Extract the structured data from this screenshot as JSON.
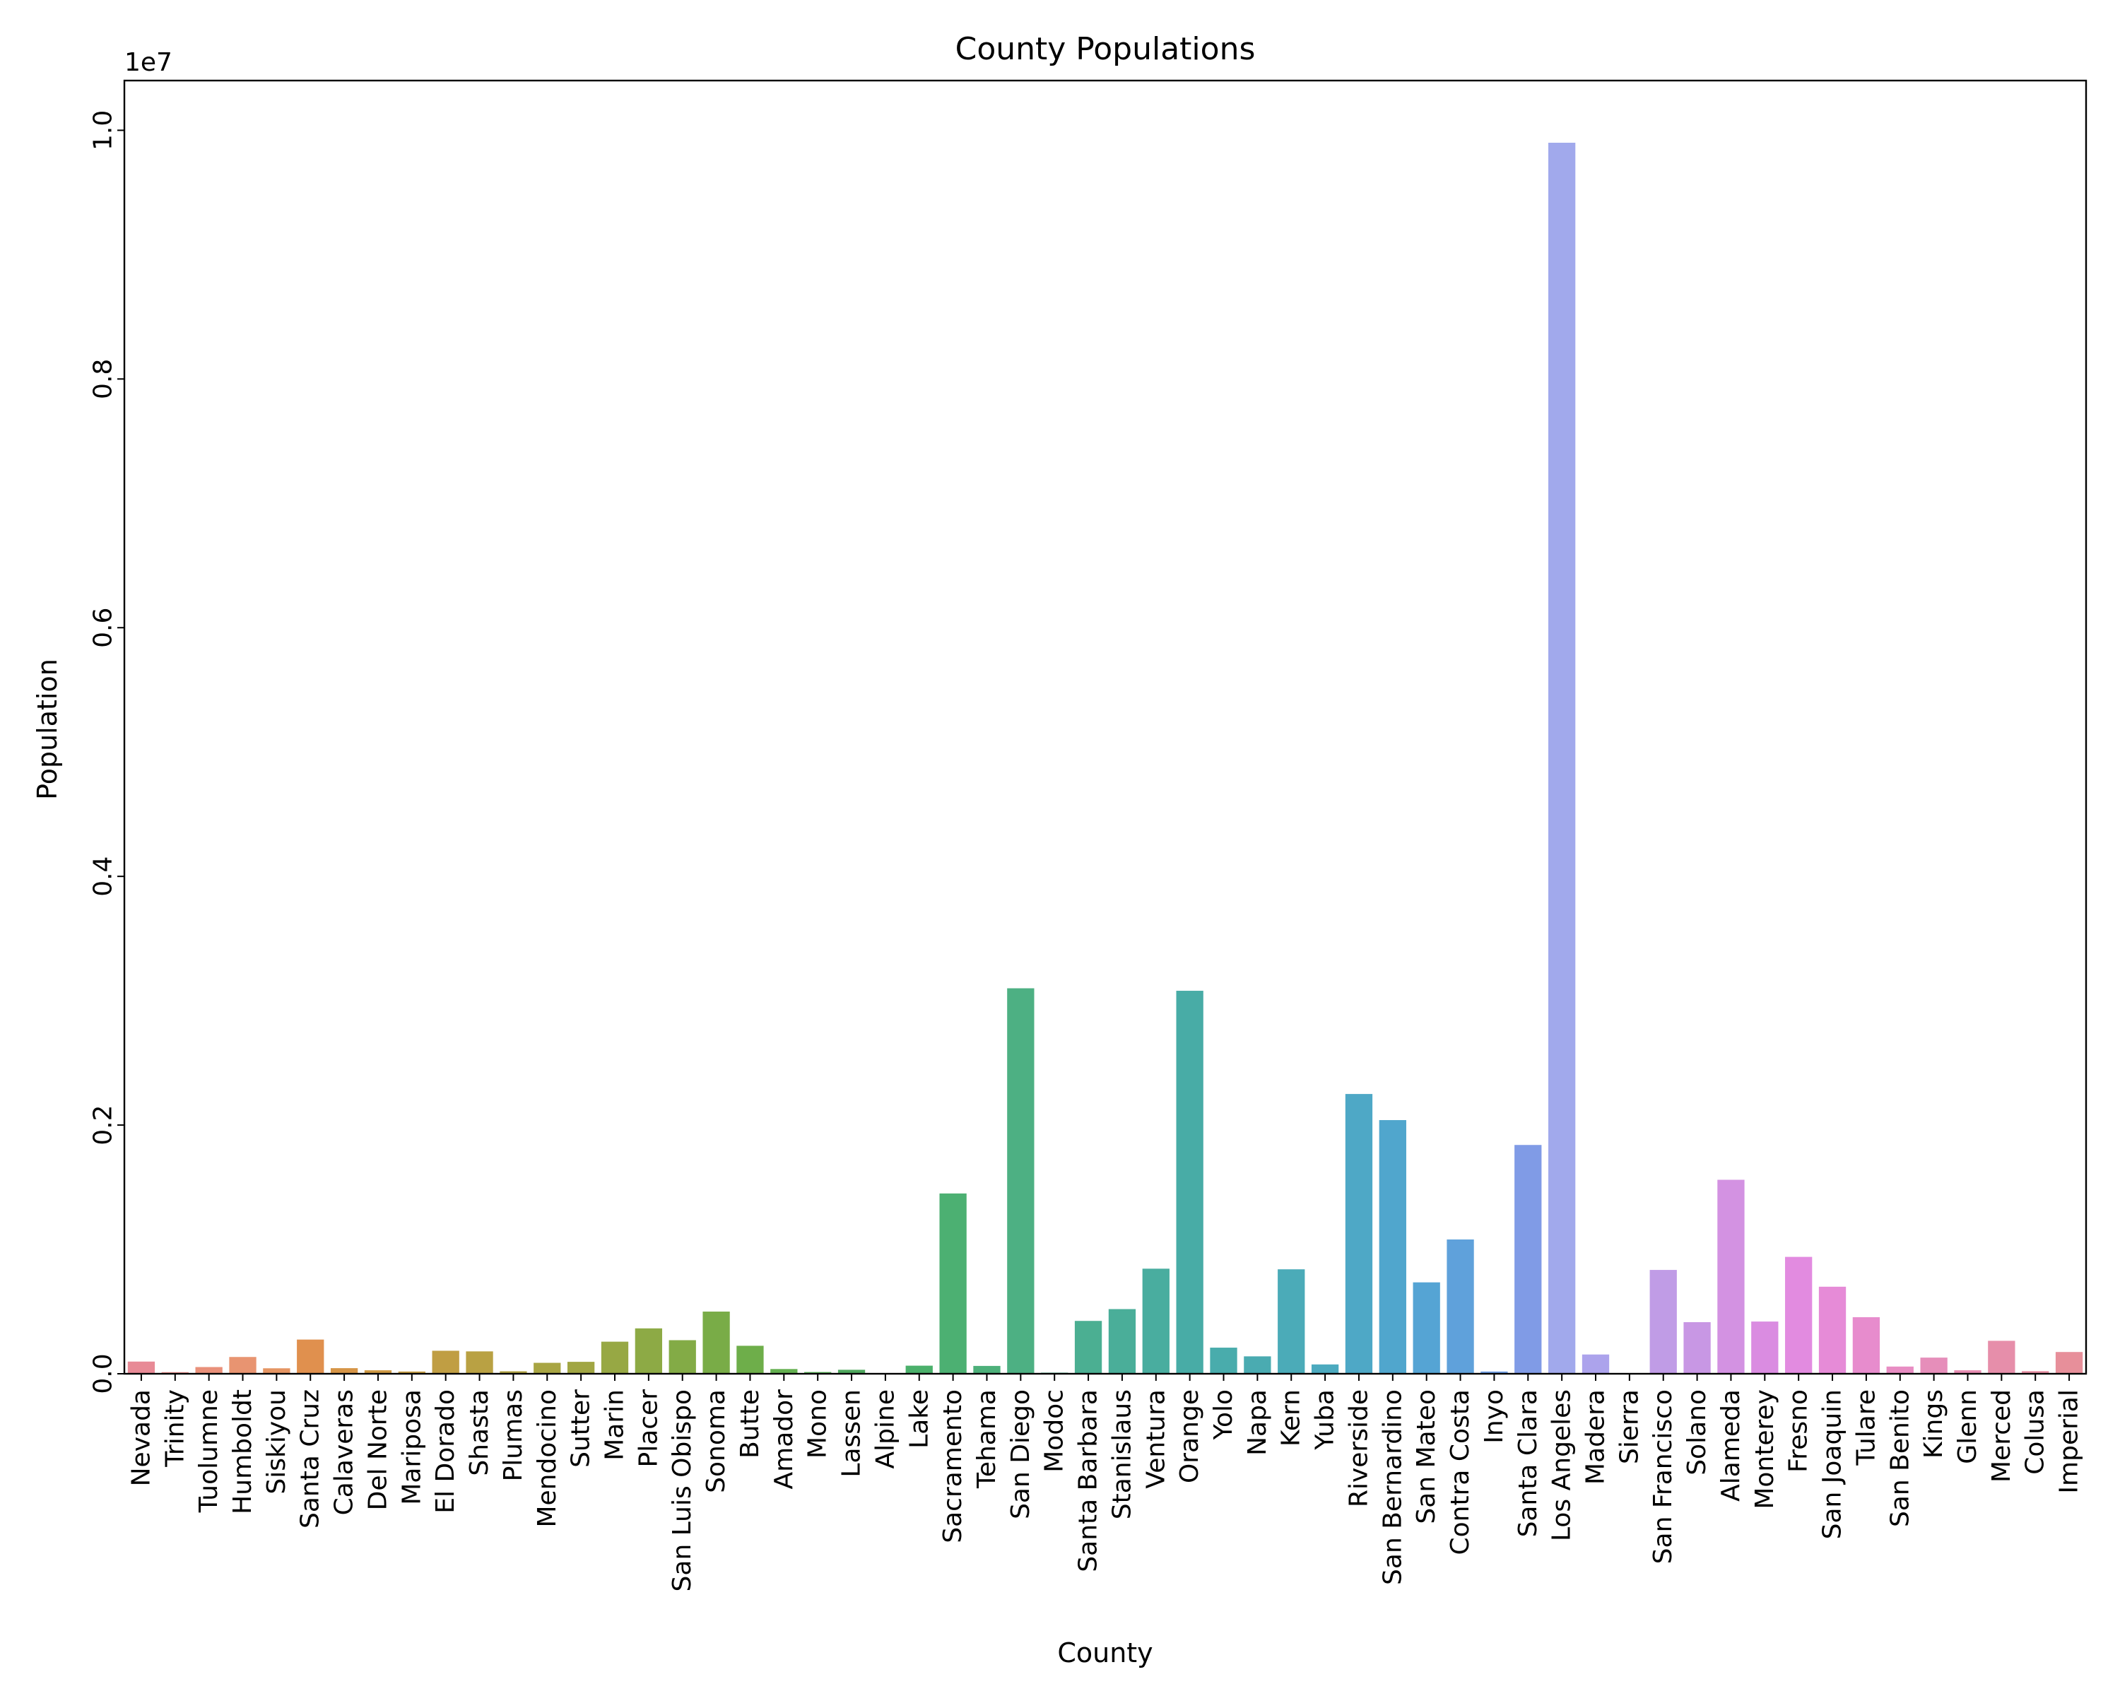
{
  "chart_data": {
    "type": "bar",
    "title": "County Populations",
    "xlabel": "County",
    "ylabel": "Population",
    "y_offset_label": "1e7",
    "ylim": [
      0,
      10400000
    ],
    "y_ticks": [
      0,
      2000000,
      4000000,
      6000000,
      8000000,
      10000000
    ],
    "y_tick_labels": [
      "0.0",
      "0.2",
      "0.4",
      "0.6",
      "0.8",
      "1.0"
    ],
    "grid": false,
    "categories": [
      "Nevada",
      "Trinity",
      "Tuolumne",
      "Humboldt",
      "Siskiyou",
      "Santa Cruz",
      "Calaveras",
      "Del Norte",
      "Mariposa",
      "El Dorado",
      "Shasta",
      "Plumas",
      "Mendocino",
      "Sutter",
      "Marin",
      "Placer",
      "San Luis Obispo",
      "Sonoma",
      "Butte",
      "Amador",
      "Mono",
      "Lassen",
      "Alpine",
      "Lake",
      "Sacramento",
      "Tehama",
      "San Diego",
      "Modoc",
      "Santa Barbara",
      "Stanislaus",
      "Ventura",
      "Orange",
      "Yolo",
      "Napa",
      "Kern",
      "Yuba",
      "Riverside",
      "San Bernardino",
      "San Mateo",
      "Contra Costa",
      "Inyo",
      "Santa Clara",
      "Los Angeles",
      "Madera",
      "Sierra",
      "San Francisco",
      "Solano",
      "Alameda",
      "Monterey",
      "Fresno",
      "San Joaquin",
      "Tulare",
      "San Benito",
      "Kings",
      "Glenn",
      "Merced",
      "Colusa",
      "Imperial"
    ],
    "values": [
      98000,
      13000,
      54000,
      135000,
      44000,
      275000,
      45000,
      28000,
      18000,
      185000,
      180000,
      20000,
      88000,
      96000,
      258000,
      365000,
      270000,
      500000,
      225000,
      38000,
      14000,
      32000,
      1100,
      65000,
      1450000,
      63000,
      3100000,
      9000,
      425000,
      520000,
      845000,
      3080000,
      210000,
      140000,
      840000,
      75000,
      2250000,
      2040000,
      735000,
      1080000,
      18000,
      1840000,
      9900000,
      155000,
      3200,
      835000,
      415000,
      1560000,
      420000,
      940000,
      700000,
      455000,
      58000,
      130000,
      28000,
      265000,
      21000,
      175000
    ],
    "colors": [
      "#e88a96",
      "#ea8c8a",
      "#e9907a",
      "#e89471",
      "#e59563",
      "#e0904e",
      "#d69547",
      "#ce9944",
      "#c69d43",
      "#c09e43",
      "#b9a143",
      "#b0a243",
      "#a8a543",
      "#a1a643",
      "#97a844",
      "#8daa45",
      "#83ab46",
      "#79ac47",
      "#6eae4a",
      "#64b050",
      "#58b156",
      "#4ea75d",
      "#4ab063",
      "#4bb06b",
      "#4cb072",
      "#4db07a",
      "#4db083",
      "#4daf8a",
      "#4baf92",
      "#4aae99",
      "#49ad9f",
      "#48aca6",
      "#49acac",
      "#4aabb1",
      "#4babb8",
      "#4caabf",
      "#4ea8c6",
      "#50a6cd",
      "#55a4d4",
      "#5fa1db",
      "#6e9de3",
      "#809be6",
      "#a1a9ec",
      "#aca3ec",
      "#b09ee7",
      "#c09ce6",
      "#c897e4",
      "#d392e2",
      "#da8ce1",
      "#e28be0",
      "#e68bd7",
      "#e78ccd",
      "#e88dc3",
      "#e68eba",
      "#e78db2",
      "#e68eaa",
      "#e78ea2",
      "#e78f9a"
    ]
  }
}
